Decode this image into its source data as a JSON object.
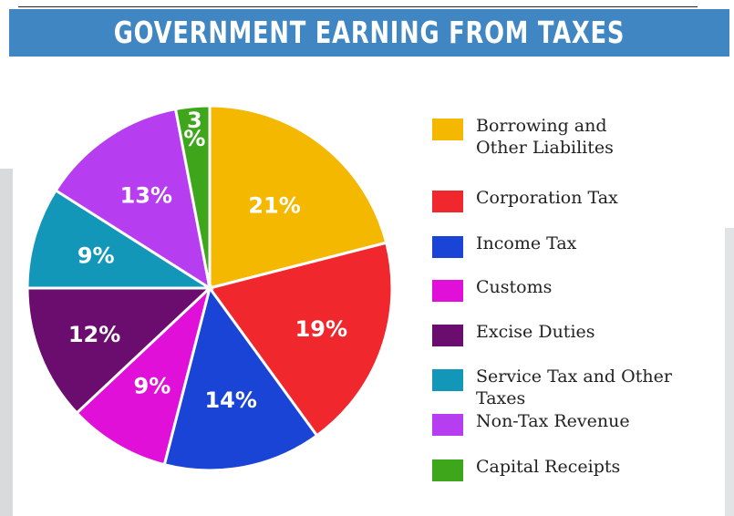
{
  "title": "GOVERNMENT EARNING FROM TAXES",
  "chart_data": {
    "type": "pie",
    "title": "GOVERNMENT EARNING FROM TAXES",
    "legend_position": "right",
    "slices": [
      {
        "name": "Borrowing and Other Liabilites",
        "value": 21,
        "label": "21%",
        "color": "#f5b800"
      },
      {
        "name": "Corporation Tax",
        "value": 19,
        "label": "19%",
        "color": "#f0282d"
      },
      {
        "name": "Income Tax",
        "value": 14,
        "label": "14%",
        "color": "#1a44d6"
      },
      {
        "name": "Customs",
        "value": 9,
        "label": "9%",
        "color": "#e010d8"
      },
      {
        "name": "Excise Duties",
        "value": 12,
        "label": "12%",
        "color": "#6a0d6e"
      },
      {
        "name": "Service Tax and Other Taxes",
        "value": 9,
        "label": "9%",
        "color": "#1297b8"
      },
      {
        "name": "Non-Tax Revenue",
        "value": 13,
        "label": "13%",
        "color": "#b63ef0"
      },
      {
        "name": "Capital Receipts",
        "value": 3,
        "label": "3\n%",
        "color": "#3ea61a"
      }
    ]
  }
}
